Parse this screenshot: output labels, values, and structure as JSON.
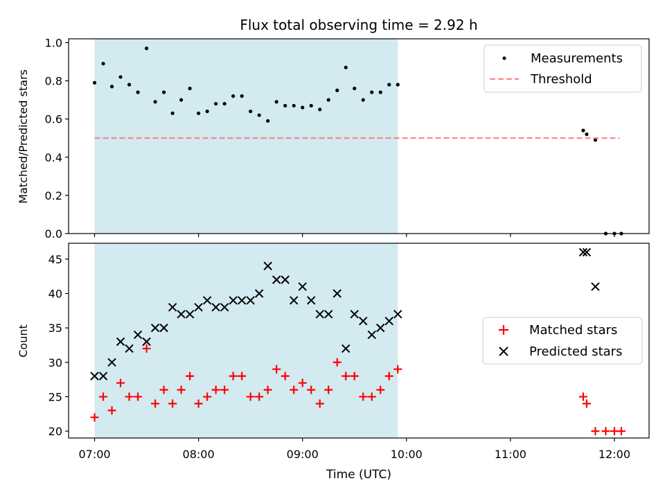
{
  "chart_data": {
    "title": "Flux total observing time = 2.92 h",
    "shaded_region": {
      "x": [
        "07:00",
        "09:55"
      ],
      "color": "#d3eaf0"
    },
    "x_axis": {
      "label": "Time (UTC)",
      "ticks": [
        "07:00",
        "08:00",
        "09:00",
        "10:00",
        "11:00",
        "12:00"
      ],
      "range": [
        "06:45",
        "12:20"
      ]
    },
    "panels": [
      {
        "type": "scatter",
        "ylabel": "Matched/Predicted stars",
        "ylim": [
          0.0,
          1.02
        ],
        "yticks": [
          "0.0",
          "0.2",
          "0.4",
          "0.6",
          "0.8",
          "1.0"
        ],
        "legend_position": "top-right",
        "series": [
          {
            "name": "Measurements",
            "marker": "dot",
            "color": "#000000",
            "points": [
              [
                "07:00",
                0.79
              ],
              [
                "07:05",
                0.89
              ],
              [
                "07:10",
                0.77
              ],
              [
                "07:15",
                0.82
              ],
              [
                "07:20",
                0.78
              ],
              [
                "07:25",
                0.74
              ],
              [
                "07:30",
                0.97
              ],
              [
                "07:35",
                0.69
              ],
              [
                "07:40",
                0.74
              ],
              [
                "07:45",
                0.63
              ],
              [
                "07:50",
                0.7
              ],
              [
                "07:55",
                0.76
              ],
              [
                "08:00",
                0.63
              ],
              [
                "08:05",
                0.64
              ],
              [
                "08:10",
                0.68
              ],
              [
                "08:15",
                0.68
              ],
              [
                "08:20",
                0.72
              ],
              [
                "08:25",
                0.72
              ],
              [
                "08:30",
                0.64
              ],
              [
                "08:35",
                0.62
              ],
              [
                "08:40",
                0.59
              ],
              [
                "08:45",
                0.69
              ],
              [
                "08:50",
                0.67
              ],
              [
                "08:55",
                0.67
              ],
              [
                "09:00",
                0.66
              ],
              [
                "09:05",
                0.67
              ],
              [
                "09:10",
                0.65
              ],
              [
                "09:15",
                0.7
              ],
              [
                "09:20",
                0.75
              ],
              [
                "09:25",
                0.87
              ],
              [
                "09:30",
                0.76
              ],
              [
                "09:35",
                0.7
              ],
              [
                "09:40",
                0.74
              ],
              [
                "09:45",
                0.74
              ],
              [
                "09:50",
                0.78
              ],
              [
                "09:55",
                0.78
              ],
              [
                "11:42",
                0.54
              ],
              [
                "11:44",
                0.52
              ],
              [
                "11:49",
                0.49
              ],
              [
                "11:55",
                0.0
              ],
              [
                "12:00",
                0.0
              ],
              [
                "12:04",
                0.0
              ]
            ]
          },
          {
            "name": "Threshold",
            "marker": "dashed-line",
            "color": "#ff7b7b",
            "x": [
              "07:00",
              "12:03"
            ],
            "value": 0.5
          }
        ]
      },
      {
        "type": "scatter",
        "ylabel": "Count",
        "ylim": [
          19,
          47.3
        ],
        "yticks": [
          "20",
          "25",
          "30",
          "35",
          "40",
          "45"
        ],
        "legend_position": "center-right",
        "series": [
          {
            "name": "Matched stars",
            "marker": "plus",
            "color": "#ff0000",
            "points": [
              [
                "07:00",
                22
              ],
              [
                "07:05",
                25
              ],
              [
                "07:10",
                23
              ],
              [
                "07:15",
                27
              ],
              [
                "07:20",
                25
              ],
              [
                "07:25",
                25
              ],
              [
                "07:30",
                32
              ],
              [
                "07:35",
                24
              ],
              [
                "07:40",
                26
              ],
              [
                "07:45",
                24
              ],
              [
                "07:50",
                26
              ],
              [
                "07:55",
                28
              ],
              [
                "08:00",
                24
              ],
              [
                "08:05",
                25
              ],
              [
                "08:10",
                26
              ],
              [
                "08:15",
                26
              ],
              [
                "08:20",
                28
              ],
              [
                "08:25",
                28
              ],
              [
                "08:30",
                25
              ],
              [
                "08:35",
                25
              ],
              [
                "08:40",
                26
              ],
              [
                "08:45",
                29
              ],
              [
                "08:50",
                28
              ],
              [
                "08:55",
                26
              ],
              [
                "09:00",
                27
              ],
              [
                "09:05",
                26
              ],
              [
                "09:10",
                24
              ],
              [
                "09:15",
                26
              ],
              [
                "09:20",
                30
              ],
              [
                "09:25",
                28
              ],
              [
                "09:30",
                28
              ],
              [
                "09:35",
                25
              ],
              [
                "09:40",
                25
              ],
              [
                "09:45",
                26
              ],
              [
                "09:50",
                28
              ],
              [
                "09:55",
                29
              ],
              [
                "11:42",
                25
              ],
              [
                "11:44",
                24
              ],
              [
                "11:49",
                20
              ],
              [
                "11:55",
                20
              ],
              [
                "12:00",
                20
              ],
              [
                "12:04",
                20
              ]
            ]
          },
          {
            "name": "Predicted stars",
            "marker": "x",
            "color": "#000000",
            "points": [
              [
                "07:00",
                28
              ],
              [
                "07:05",
                28
              ],
              [
                "07:10",
                30
              ],
              [
                "07:15",
                33
              ],
              [
                "07:20",
                32
              ],
              [
                "07:25",
                34
              ],
              [
                "07:30",
                33
              ],
              [
                "07:35",
                35
              ],
              [
                "07:40",
                35
              ],
              [
                "07:45",
                38
              ],
              [
                "07:50",
                37
              ],
              [
                "07:55",
                37
              ],
              [
                "08:00",
                38
              ],
              [
                "08:05",
                39
              ],
              [
                "08:10",
                38
              ],
              [
                "08:15",
                38
              ],
              [
                "08:20",
                39
              ],
              [
                "08:25",
                39
              ],
              [
                "08:30",
                39
              ],
              [
                "08:35",
                40
              ],
              [
                "08:40",
                44
              ],
              [
                "08:45",
                42
              ],
              [
                "08:50",
                42
              ],
              [
                "08:55",
                39
              ],
              [
                "09:00",
                41
              ],
              [
                "09:05",
                39
              ],
              [
                "09:10",
                37
              ],
              [
                "09:15",
                37
              ],
              [
                "09:20",
                40
              ],
              [
                "09:25",
                32
              ],
              [
                "09:30",
                37
              ],
              [
                "09:35",
                36
              ],
              [
                "09:40",
                34
              ],
              [
                "09:45",
                35
              ],
              [
                "09:50",
                36
              ],
              [
                "09:55",
                37
              ],
              [
                "11:42",
                46
              ],
              [
                "11:44",
                46
              ],
              [
                "11:49",
                41
              ]
            ]
          }
        ]
      }
    ]
  }
}
